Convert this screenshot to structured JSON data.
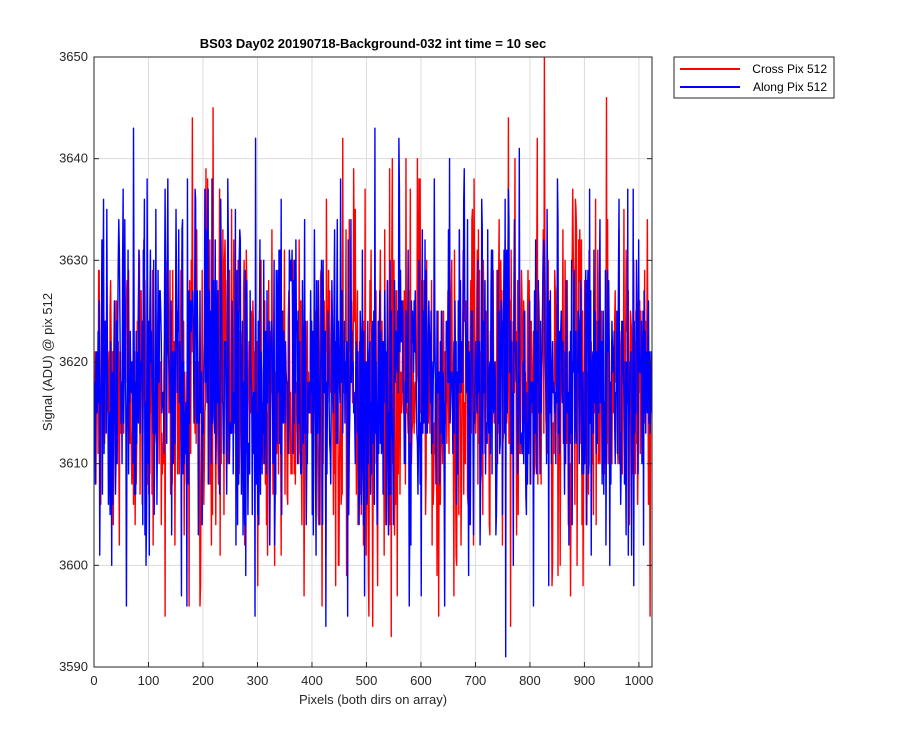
{
  "chart_data": {
    "type": "line",
    "title": "BS03 Day02 20190718-Background-032 int time = 10 sec",
    "xlabel": "Pixels (both dirs on array)",
    "ylabel": "Signal (ADU) @ pix 512",
    "xlim": [
      0,
      1024
    ],
    "ylim": [
      3590,
      3650
    ],
    "xticks": [
      0,
      100,
      200,
      300,
      400,
      500,
      600,
      700,
      800,
      900,
      1000
    ],
    "yticks": [
      3590,
      3600,
      3610,
      3620,
      3630,
      3640,
      3650
    ],
    "grid": true,
    "legend_position": "outside-top-right",
    "series": [
      {
        "name": "Cross Pix 512",
        "color": "#ff0000",
        "mean": 3618,
        "min": 3593,
        "max": 3650,
        "n_points": 1024,
        "x": [
          0,
          130,
          180,
          218,
          300,
          545,
          660,
          760,
          826,
          940,
          1023
        ],
        "y": [
          3618,
          3595,
          3644,
          3645,
          3598,
          3593,
          3597,
          3644,
          3650,
          3646,
          3617
        ]
      },
      {
        "name": "Along Pix 512",
        "color": "#0000ff",
        "mean": 3618,
        "min": 3591,
        "max": 3643,
        "n_points": 1024,
        "x": [
          0,
          72,
          160,
          295,
          465,
          515,
          600,
          755,
          980,
          1023
        ],
        "y": [
          3617,
          3643,
          3597,
          3595,
          3595,
          3643,
          3597,
          3591,
          3601,
          3615
        ]
      }
    ]
  }
}
